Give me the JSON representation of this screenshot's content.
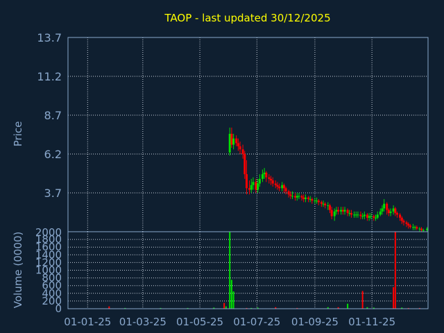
{
  "colors": {
    "background": "#0f1f30",
    "title": "#ffff00",
    "axis_text": "#8aa8cc",
    "grid": "#c8d0dc",
    "frame": "#8aa8cc",
    "up": "#00e000",
    "down": "#ff0000"
  },
  "chart_data": [
    {
      "type": "candlestick",
      "title": "TAOP - last updated 30/12/2025",
      "ylabel": "Price",
      "ylim": [
        1.2,
        13.7
      ],
      "yticks": [
        "13.7",
        "11.2",
        "8.7",
        "6.2",
        "3.7"
      ],
      "grid": true,
      "series": [
        {
          "x": [
            "2025-06-02",
            "2025-06-04",
            "2025-06-06",
            "2025-06-09",
            "2025-06-11",
            "2025-06-13",
            "2025-06-16",
            "2025-06-18",
            "2025-06-20",
            "2025-06-23",
            "2025-06-25",
            "2025-06-27",
            "2025-06-30",
            "2025-07-02",
            "2025-07-04",
            "2025-07-07",
            "2025-07-09",
            "2025-07-11",
            "2025-07-14",
            "2025-07-16",
            "2025-07-18",
            "2025-07-21",
            "2025-07-23",
            "2025-07-25",
            "2025-07-28",
            "2025-07-30",
            "2025-08-01",
            "2025-08-04",
            "2025-08-06",
            "2025-08-08",
            "2025-08-11",
            "2025-08-13",
            "2025-08-15",
            "2025-08-18",
            "2025-08-20",
            "2025-08-22",
            "2025-08-25",
            "2025-08-27",
            "2025-08-29",
            "2025-09-01",
            "2025-09-03",
            "2025-09-05",
            "2025-09-08",
            "2025-09-10",
            "2025-09-12",
            "2025-09-15",
            "2025-09-17",
            "2025-09-19",
            "2025-09-22",
            "2025-09-24",
            "2025-09-26",
            "2025-09-29",
            "2025-10-01",
            "2025-10-03",
            "2025-10-06",
            "2025-10-08",
            "2025-10-10",
            "2025-10-13",
            "2025-10-15",
            "2025-10-17",
            "2025-10-20",
            "2025-10-22",
            "2025-10-24",
            "2025-10-27",
            "2025-10-29",
            "2025-10-31",
            "2025-11-03",
            "2025-11-05",
            "2025-11-07",
            "2025-11-10",
            "2025-11-12",
            "2025-11-14",
            "2025-11-17",
            "2025-11-19",
            "2025-11-21",
            "2025-11-24",
            "2025-11-26",
            "2025-11-28",
            "2025-12-01",
            "2025-12-03",
            "2025-12-05",
            "2025-12-08",
            "2025-12-10",
            "2025-12-12",
            "2025-12-15",
            "2025-12-17",
            "2025-12-19",
            "2025-12-22",
            "2025-12-24",
            "2025-12-26",
            "2025-12-30"
          ],
          "open": [
            6.3,
            7.5,
            6.8,
            7.2,
            6.9,
            6.7,
            6.5,
            6.2,
            4.9,
            4.0,
            3.9,
            4.2,
            4.4,
            3.9,
            4.3,
            4.6,
            4.9,
            5.0,
            4.7,
            4.6,
            4.5,
            4.3,
            4.2,
            4.1,
            4.0,
            4.2,
            4.0,
            3.8,
            3.6,
            3.5,
            3.5,
            3.4,
            3.5,
            3.5,
            3.4,
            3.3,
            3.4,
            3.3,
            3.3,
            3.2,
            3.2,
            3.2,
            3.1,
            3.0,
            3.0,
            2.9,
            2.9,
            2.6,
            2.2,
            2.5,
            2.6,
            2.5,
            2.6,
            2.5,
            2.6,
            2.4,
            2.4,
            2.3,
            2.3,
            2.3,
            2.3,
            2.2,
            2.2,
            2.3,
            2.1,
            2.2,
            2.2,
            2.1,
            2.1,
            2.3,
            2.5,
            2.7,
            3.0,
            2.6,
            2.4,
            2.5,
            2.7,
            2.4,
            2.3,
            2.1,
            1.9,
            1.8,
            1.7,
            1.6,
            1.5,
            1.5,
            1.5,
            1.4,
            1.4,
            1.3,
            1.3
          ],
          "close": [
            7.5,
            6.8,
            7.2,
            6.9,
            6.7,
            6.5,
            6.2,
            4.9,
            4.0,
            3.9,
            4.2,
            4.4,
            3.9,
            4.3,
            4.6,
            4.9,
            5.0,
            4.7,
            4.6,
            4.5,
            4.3,
            4.2,
            4.1,
            4.0,
            4.2,
            4.0,
            3.8,
            3.6,
            3.5,
            3.5,
            3.4,
            3.5,
            3.5,
            3.4,
            3.3,
            3.4,
            3.3,
            3.3,
            3.2,
            3.2,
            3.2,
            3.1,
            3.0,
            3.0,
            2.9,
            2.9,
            2.6,
            2.2,
            2.5,
            2.6,
            2.5,
            2.6,
            2.5,
            2.6,
            2.4,
            2.4,
            2.3,
            2.3,
            2.3,
            2.3,
            2.2,
            2.2,
            2.3,
            2.1,
            2.2,
            2.2,
            2.1,
            2.1,
            2.3,
            2.5,
            2.7,
            3.0,
            2.6,
            2.4,
            2.5,
            2.7,
            2.4,
            2.3,
            2.1,
            1.9,
            1.8,
            1.7,
            1.6,
            1.5,
            1.5,
            1.5,
            1.4,
            1.4,
            1.3,
            1.3,
            1.4
          ],
          "high": [
            7.9,
            7.9,
            7.5,
            7.4,
            7.2,
            7.0,
            6.8,
            6.4,
            5.8,
            4.5,
            4.6,
            4.7,
            4.6,
            4.6,
            4.9,
            5.2,
            5.3,
            5.1,
            4.9,
            4.8,
            4.7,
            4.5,
            4.4,
            4.3,
            4.4,
            4.3,
            4.1,
            3.9,
            3.8,
            3.8,
            3.7,
            3.7,
            3.7,
            3.6,
            3.6,
            3.6,
            3.5,
            3.5,
            3.4,
            3.4,
            3.4,
            3.3,
            3.2,
            3.2,
            3.1,
            3.1,
            3.0,
            2.8,
            2.7,
            2.8,
            2.8,
            2.8,
            2.8,
            2.8,
            2.7,
            2.6,
            2.6,
            2.5,
            2.5,
            2.5,
            2.5,
            2.4,
            2.5,
            2.4,
            2.4,
            2.4,
            2.3,
            2.3,
            2.5,
            2.7,
            2.9,
            3.3,
            3.1,
            2.7,
            2.7,
            2.9,
            2.8,
            2.5,
            2.4,
            2.2,
            2.0,
            1.9,
            1.8,
            1.7,
            1.7,
            1.6,
            1.6,
            1.5,
            1.5,
            1.4,
            1.5
          ],
          "low": [
            6.1,
            6.6,
            6.5,
            6.7,
            6.4,
            6.2,
            5.9,
            4.6,
            3.6,
            3.6,
            3.7,
            3.9,
            3.7,
            3.7,
            4.1,
            4.4,
            4.6,
            4.4,
            4.3,
            4.2,
            4.1,
            4.0,
            3.9,
            3.8,
            3.8,
            3.7,
            3.6,
            3.4,
            3.3,
            3.3,
            3.2,
            3.2,
            3.3,
            3.2,
            3.1,
            3.1,
            3.1,
            3.1,
            3.0,
            3.0,
            3.0,
            2.9,
            2.8,
            2.8,
            2.7,
            2.6,
            2.4,
            2.0,
            1.9,
            2.3,
            2.3,
            2.3,
            2.3,
            2.3,
            2.2,
            2.2,
            2.1,
            2.1,
            2.1,
            2.1,
            2.0,
            2.0,
            2.0,
            1.9,
            1.9,
            2.0,
            1.9,
            1.9,
            2.0,
            2.2,
            2.3,
            2.5,
            2.3,
            2.2,
            2.2,
            2.3,
            2.2,
            2.1,
            1.9,
            1.7,
            1.6,
            1.5,
            1.4,
            1.4,
            1.3,
            1.3,
            1.3,
            1.2,
            1.2,
            1.2,
            1.2
          ]
        }
      ]
    },
    {
      "type": "bar",
      "ylabel": "Volume (0000)",
      "ylim": [
        0,
        2000
      ],
      "ytick_values": [
        0,
        200,
        400,
        600,
        800,
        1000,
        1200,
        1400,
        1600,
        1800,
        2000
      ],
      "yticks": [
        "0",
        "200",
        "400",
        "600",
        "800",
        "1000",
        "1200",
        "1400",
        "1600",
        "1800",
        "2000"
      ],
      "xticks": [
        "01-01-25",
        "01-03-25",
        "01-05-25",
        "01-07-25",
        "01-09-25",
        "01-11-25"
      ],
      "xtick_dates": [
        "2025-01-01",
        "2025-03-01",
        "2025-05-01",
        "2025-07-01",
        "2025-09-01",
        "2025-11-01"
      ],
      "xlim": [
        "2024-12-11",
        "2025-12-31"
      ],
      "grid": true,
      "series": [
        {
          "x": [
            "2025-01-24",
            "2025-02-10",
            "2025-03-20",
            "2025-04-18",
            "2025-05-16",
            "2025-05-27",
            "2025-05-29",
            "2025-06-02",
            "2025-06-04",
            "2025-06-06",
            "2025-06-20",
            "2025-06-25",
            "2025-07-02",
            "2025-07-21",
            "2025-08-13",
            "2025-09-15",
            "2025-09-26",
            "2025-10-06",
            "2025-10-22",
            "2025-10-27",
            "2025-11-03",
            "2025-11-24",
            "2025-11-26",
            "2025-12-03",
            "2025-12-10",
            "2025-12-22"
          ],
          "values": [
            60,
            20,
            20,
            20,
            30,
            150,
            60,
            2000,
            750,
            450,
            20,
            20,
            30,
            40,
            20,
            40,
            40,
            130,
            460,
            40,
            30,
            560,
            2000,
            30,
            20,
            20
          ],
          "direction": [
            "down",
            "up",
            "up",
            "up",
            "up",
            "down",
            "up",
            "up",
            "up",
            "up",
            "down",
            "up",
            "up",
            "down",
            "down",
            "up",
            "down",
            "up",
            "down",
            "up",
            "up",
            "down",
            "down",
            "up",
            "down",
            "down"
          ]
        }
      ]
    }
  ]
}
